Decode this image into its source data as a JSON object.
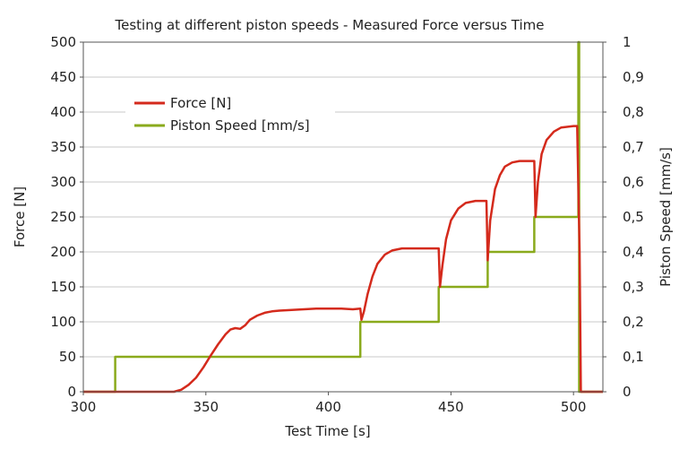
{
  "chart_data": {
    "type": "line",
    "title": "Testing at different piston speeds - Measured Force versus Time",
    "xlabel": "Test Time [s]",
    "ylabel": "Force [N]",
    "y2label": "Piston Speed [mm/s]",
    "xlim": [
      300,
      512
    ],
    "ylim": [
      0,
      500
    ],
    "y2lim": [
      0,
      1
    ],
    "x_ticks": [
      300,
      350,
      400,
      450,
      500
    ],
    "y_ticks": [
      0,
      50,
      100,
      150,
      200,
      250,
      300,
      350,
      400,
      450,
      500
    ],
    "y2_ticks": [
      "0",
      "0,1",
      "0,2",
      "0,3",
      "0,4",
      "0,5",
      "0,6",
      "0,7",
      "0,8",
      "0,9",
      "1"
    ],
    "grid": "horizontal",
    "legend_position": "upper-left",
    "series": [
      {
        "name": "Force [N]",
        "axis": "left",
        "color": "#d42a1c",
        "x": [
          300,
          337,
          340,
          343,
          346,
          349,
          352,
          355,
          358,
          360,
          362,
          364,
          366,
          368,
          371,
          374,
          377,
          380,
          385,
          390,
          395,
          400,
          405,
          410,
          413,
          413.5,
          414.5,
          416,
          418,
          420,
          423,
          426,
          430,
          435,
          440,
          445,
          445.5,
          446.5,
          448,
          450,
          453,
          456,
          460,
          464.5,
          465,
          466,
          468,
          470,
          472,
          475,
          478,
          483,
          484,
          484.5,
          485.5,
          487,
          489,
          492,
          495,
          500,
          501.5,
          502.5,
          503,
          512
        ],
        "y": [
          0,
          0,
          3,
          10,
          20,
          35,
          52,
          68,
          82,
          89,
          91,
          90,
          95,
          103,
          109,
          113,
          115,
          116,
          117,
          118,
          119,
          119,
          119,
          118,
          119,
          103,
          115,
          140,
          165,
          183,
          196,
          202,
          205,
          205,
          205,
          205,
          150,
          180,
          218,
          245,
          262,
          270,
          273,
          273,
          188,
          245,
          290,
          310,
          322,
          328,
          330,
          330,
          330,
          250,
          300,
          340,
          360,
          372,
          378,
          380,
          380,
          200,
          0,
          0
        ]
      },
      {
        "name": "Piston Speed [mm/s]",
        "axis": "right",
        "color": "#8aaa1c",
        "x": [
          300,
          313,
          313,
          413,
          413,
          445,
          445,
          465,
          465,
          484,
          484,
          502,
          502,
          502.3,
          502.3,
          512
        ],
        "y": [
          0,
          0,
          0.1,
          0.1,
          0.2,
          0.2,
          0.3,
          0.3,
          0.4,
          0.4,
          0.5,
          0.5,
          1.0,
          1.0,
          0,
          0
        ]
      }
    ]
  }
}
